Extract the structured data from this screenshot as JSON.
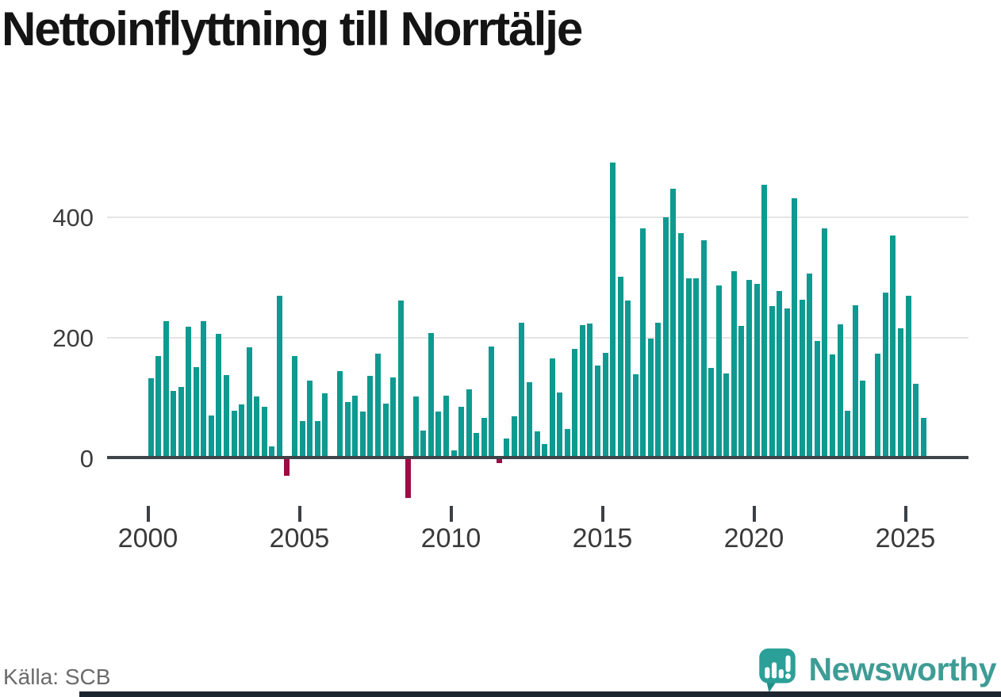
{
  "title": "Nettoinflyttning till Norrtälje",
  "source": "Källa: SCB",
  "brand": {
    "name": "Newsworthy",
    "text_color": "#3f9c95",
    "mark_color": "#2aa098"
  },
  "chart_data": {
    "type": "bar",
    "title": "Nettoinflyttning till Norrtälje",
    "xlabel": "",
    "ylabel": "",
    "frequency": "quarterly",
    "y_ticks": [
      0,
      200,
      400
    ],
    "y_gridlines": [
      200,
      400
    ],
    "ylim": [
      -100,
      500
    ],
    "x_tick_years": [
      2000,
      2005,
      2010,
      2015,
      2020,
      2025
    ],
    "x_tick_labels": [
      "2000",
      "2005",
      "2010",
      "2015",
      "2020",
      "2025"
    ],
    "positive_color": "#0e9a90",
    "negative_color": "#9d0c46",
    "grid": "horizontal-only",
    "legend": "none",
    "values_by_year": [
      {
        "year": 2000,
        "q": [
          132,
          168,
          226,
          111
        ]
      },
      {
        "year": 2001,
        "q": [
          117,
          217,
          150,
          226
        ]
      },
      {
        "year": 2002,
        "q": [
          70,
          205,
          137,
          77
        ]
      },
      {
        "year": 2003,
        "q": [
          88,
          183,
          101,
          84
        ]
      },
      {
        "year": 2004,
        "q": [
          18,
          268,
          -28,
          168
        ]
      },
      {
        "year": 2005,
        "q": [
          61,
          128,
          61,
          106
        ]
      },
      {
        "year": 2006,
        "q": [
          0,
          144,
          92,
          103
        ]
      },
      {
        "year": 2007,
        "q": [
          76,
          136,
          172,
          90
        ]
      },
      {
        "year": 2008,
        "q": [
          133,
          261,
          -65,
          101
        ]
      },
      {
        "year": 2009,
        "q": [
          45,
          207,
          76,
          102
        ]
      },
      {
        "year": 2010,
        "q": [
          12,
          84,
          113,
          41
        ]
      },
      {
        "year": 2011,
        "q": [
          66,
          184,
          -6,
          32
        ]
      },
      {
        "year": 2012,
        "q": [
          68,
          224,
          125,
          44
        ]
      },
      {
        "year": 2013,
        "q": [
          22,
          164,
          108,
          48
        ]
      },
      {
        "year": 2014,
        "q": [
          180,
          220,
          222,
          152
        ]
      },
      {
        "year": 2015,
        "q": [
          174,
          489,
          300,
          260
        ]
      },
      {
        "year": 2016,
        "q": [
          138,
          380,
          198,
          224
        ]
      },
      {
        "year": 2017,
        "q": [
          399,
          446,
          372,
          298
        ]
      },
      {
        "year": 2018,
        "q": [
          298,
          360,
          149,
          285
        ]
      },
      {
        "year": 2019,
        "q": [
          140,
          309,
          218,
          295
        ]
      },
      {
        "year": 2020,
        "q": [
          288,
          452,
          251,
          276
        ]
      },
      {
        "year": 2021,
        "q": [
          248,
          430,
          262,
          305
        ]
      },
      {
        "year": 2022,
        "q": [
          194,
          380,
          171,
          221
        ]
      },
      {
        "year": 2023,
        "q": [
          78,
          252,
          127,
          0
        ]
      },
      {
        "year": 2024,
        "q": [
          172,
          274,
          368,
          215
        ]
      },
      {
        "year": 2025,
        "q": [
          268,
          123,
          66
        ]
      }
    ]
  }
}
